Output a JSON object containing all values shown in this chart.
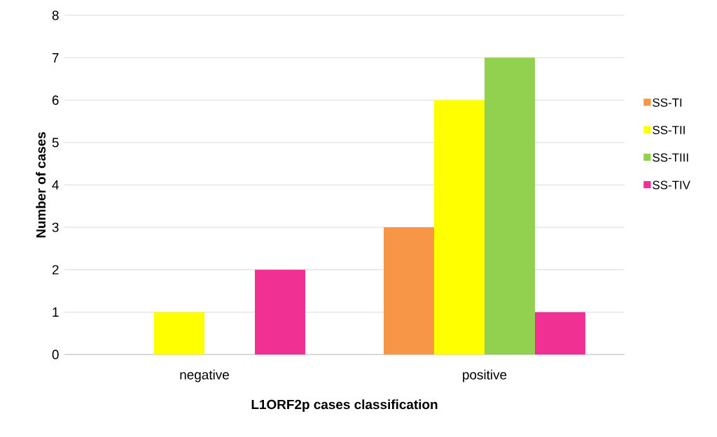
{
  "chart_data": {
    "type": "bar",
    "xlabel": "L1ORF2p cases classification",
    "ylabel": "Number of cases",
    "categories": [
      "negative",
      "positive"
    ],
    "series": [
      {
        "name": "SS-TI",
        "color": "#f79646",
        "values": [
          0,
          3
        ]
      },
      {
        "name": "SS-TII",
        "color": "#ffff00",
        "values": [
          1,
          6
        ]
      },
      {
        "name": "SS-TIII",
        "color": "#92d050",
        "values": [
          0,
          7
        ]
      },
      {
        "name": "SS-TIV",
        "color": "#f03092",
        "values": [
          2,
          1
        ]
      }
    ],
    "ylim": [
      0,
      8
    ],
    "yticks": [
      0,
      1,
      2,
      3,
      4,
      5,
      6,
      7,
      8
    ],
    "grid": "y",
    "legend": "right"
  }
}
